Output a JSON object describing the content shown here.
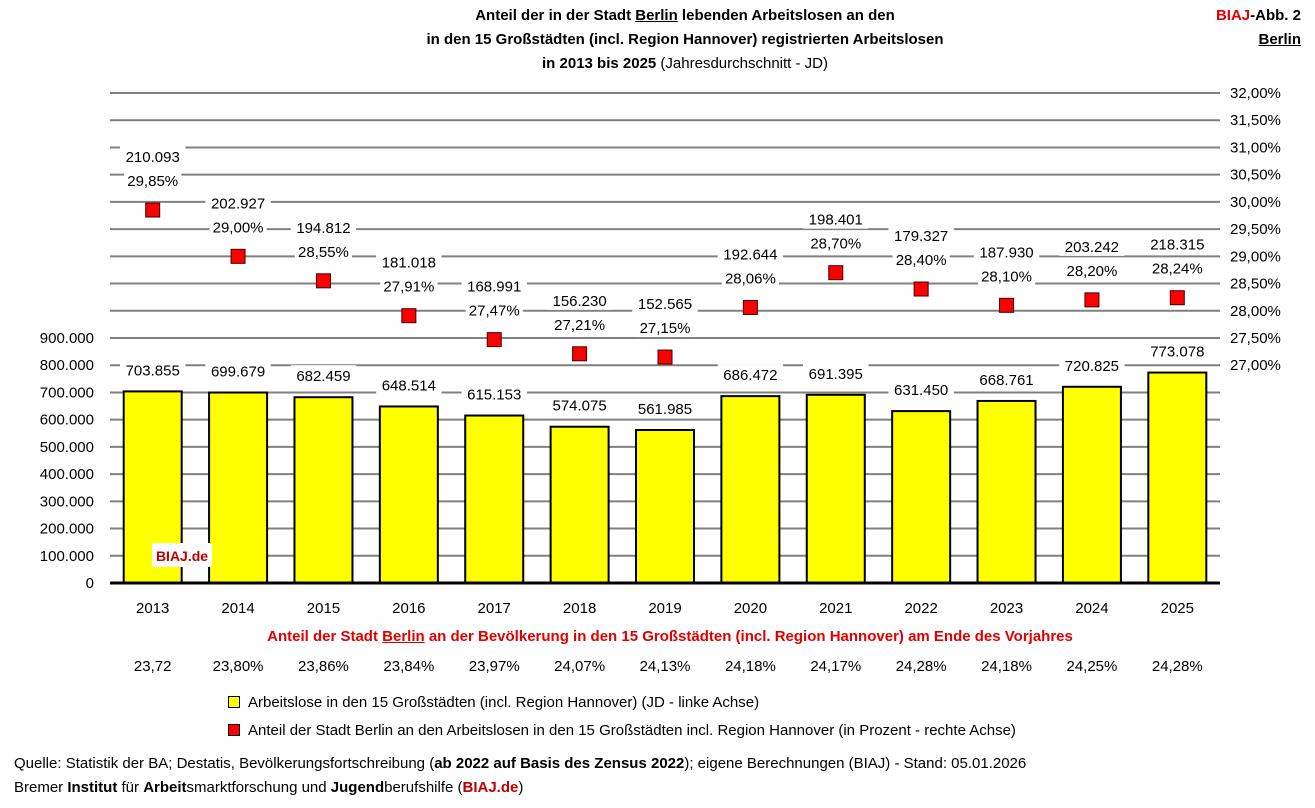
{
  "header": {
    "title_line1_a": "Anteil der in der Stadt ",
    "title_line1_city": "Berlin",
    "title_line1_b": " lebenden Arbeitslosen an den",
    "title_line2": "in den 15 Großstädten (incl. Region Hannover) registrierten Arbeitslosen",
    "title_line3_bold": "in 2013 bis 2025",
    "title_line3_normal": " (Jahresdurchschnitt - JD)",
    "badge_a": "BIAJ",
    "badge_b": "-Abb. 2",
    "badge_city": "Berlin"
  },
  "chart_data": {
    "type": "bar+scatter",
    "categories": [
      "2013",
      "2014",
      "2015",
      "2016",
      "2017",
      "2018",
      "2019",
      "2020",
      "2021",
      "2022",
      "2023",
      "2024",
      "2025"
    ],
    "series": [
      {
        "name": "Arbeitslose in den 15 Großstädten (incl. Region Hannover) (JD - linke Achse)",
        "type": "bar",
        "axis": "left",
        "values": [
          703855,
          699679,
          682459,
          648514,
          615153,
          574075,
          561985,
          686472,
          691395,
          631450,
          668761,
          720825,
          773078
        ],
        "labels": [
          "703.855",
          "699.679",
          "682.459",
          "648.514",
          "615.153",
          "574.075",
          "561.985",
          "686.472",
          "691.395",
          "631.450",
          "668.761",
          "720.825",
          "773.078"
        ],
        "color": "#ffff00"
      },
      {
        "name": "Anteil der Stadt Berlin an den Arbeitslosen in den 15 Großstädten incl. Region Hannover (in Prozent - rechte Achse)",
        "type": "scatter",
        "axis": "right",
        "values": [
          29.85,
          29.0,
          28.55,
          27.91,
          27.47,
          27.21,
          27.15,
          28.06,
          28.7,
          28.4,
          28.1,
          28.2,
          28.24
        ],
        "labels": [
          "29,85%",
          "29,00%",
          "28,55%",
          "27,91%",
          "27,47%",
          "27,21%",
          "27,15%",
          "28,06%",
          "28,70%",
          "28,40%",
          "28,10%",
          "28,20%",
          "28,24%"
        ],
        "color": "#ff0000"
      }
    ],
    "berlin_unemployed_labels": [
      "210.093",
      "202.927",
      "194.812",
      "181.018",
      "168.991",
      "156.230",
      "152.565",
      "192.644",
      "198.401",
      "179.327",
      "187.930",
      "203.242",
      "218.315"
    ],
    "left_axis": {
      "ylim": [
        0,
        1800000
      ],
      "ticks": [
        "0",
        "100.000",
        "200.000",
        "300.000",
        "400.000",
        "500.000",
        "600.000",
        "700.000",
        "800.000",
        "900.000"
      ]
    },
    "right_axis": {
      "ylim": [
        23,
        32
      ],
      "ticks": [
        "27,00%",
        "27,50%",
        "28,00%",
        "28,50%",
        "29,00%",
        "29,50%",
        "30,00%",
        "30,50%",
        "31,00%",
        "31,50%",
        "32,00%"
      ]
    },
    "grid": true,
    "watermark": "BIAJ.de"
  },
  "population": {
    "title_a": "Anteil der Stadt ",
    "title_city": "Berlin",
    "title_b": " an der Bevölkerung in den 15 Großstädten (incl. Region Hannover) am Ende des Vorjahres",
    "values": [
      "23,72",
      "23,80%",
      "23,86%",
      "23,84%",
      "23,97%",
      "24,07%",
      "24,13%",
      "24,18%",
      "24,17%",
      "24,28%",
      "24,18%",
      "24,25%",
      "24,28%"
    ]
  },
  "legend": {
    "bars": "Arbeitslose in den 15 Großstädten (incl. Region Hannover) (JD - linke Achse)",
    "points": "Anteil der Stadt Berlin an den Arbeitslosen in den 15 Großstädten incl. Region Hannover (in Prozent - rechte Achse)"
  },
  "footer": {
    "line1_a": "Quelle: Statistik der BA; Destatis, Bevölkerungsfortschreibung (",
    "line1_bold": "ab 2022 auf Basis des Zensus 2022",
    "line1_b": "); eigene Berechnungen (BIAJ) - Stand: 05.01.2026",
    "l2_1": "Bremer ",
    "l2_2": "Institut",
    "l2_3": " für ",
    "l2_4": "Arbeit",
    "l2_5": "smarktforschung und ",
    "l2_6": "Jugend",
    "l2_7": "berufshilfe (",
    "l2_8": "BIAJ.de",
    "l2_9": ")"
  }
}
